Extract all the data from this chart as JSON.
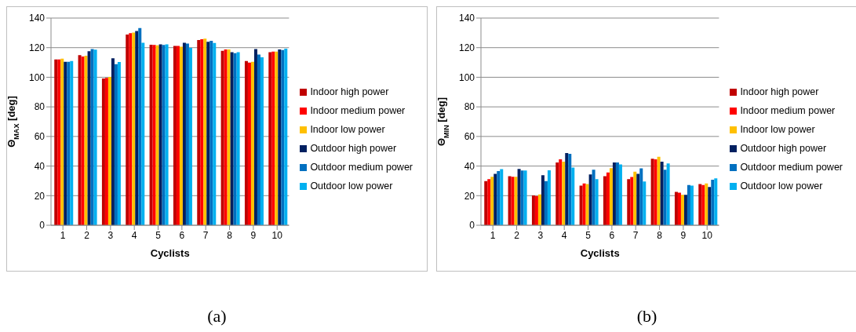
{
  "chart_data": [
    {
      "type": "bar",
      "ylabel": "Θ$_{MAX}$ [deg]",
      "xlabel": "Cyclists",
      "annotations": [
        "(a)"
      ],
      "categories": [
        "1",
        "2",
        "3",
        "4",
        "5",
        "6",
        "7",
        "8",
        "9",
        "10"
      ],
      "ylim": [
        0,
        140
      ],
      "yticks": [
        0,
        20,
        40,
        60,
        80,
        100,
        120,
        140
      ],
      "grid": "y",
      "legend": "right",
      "series": [
        {
          "name": "Indoor high power",
          "color": "#c00000",
          "values": [
            112,
            115,
            99.2,
            128.9,
            122,
            121.2,
            125.1,
            117.8,
            110.9,
            116.9
          ]
        },
        {
          "name": "Indoor medium power",
          "color": "#ff0000",
          "values": [
            112,
            114,
            99.6,
            129.8,
            121.8,
            121.2,
            125.7,
            118.8,
            109.9,
            117.3
          ]
        },
        {
          "name": "Indoor low power",
          "color": "#ffc000",
          "values": [
            112.5,
            114.5,
            100.2,
            130.2,
            121.6,
            120.6,
            126.1,
            118.8,
            110.5,
            117.3
          ]
        },
        {
          "name": "Outdoor high power",
          "color": "#002060",
          "values": [
            110.5,
            117.6,
            112.8,
            131.3,
            122.3,
            123.3,
            124,
            116.9,
            119.1,
            118.8
          ]
        },
        {
          "name": "Outdoor medium power",
          "color": "#0070c0",
          "values": [
            110.5,
            119.1,
            108.8,
            133.2,
            121.8,
            122.7,
            124.6,
            116.3,
            115.4,
            118.4
          ]
        },
        {
          "name": "Outdoor low power",
          "color": "#00b0f0",
          "values": [
            111,
            118.6,
            110.3,
            123.3,
            122.3,
            119.9,
            123.1,
            116.9,
            113.5,
            119.3
          ]
        }
      ]
    },
    {
      "type": "bar",
      "ylabel": "Θ$_{MIN}$ [deg]",
      "xlabel": "Cyclists",
      "annotations": [
        "(b)"
      ],
      "categories": [
        "1",
        "2",
        "3",
        "4",
        "5",
        "6",
        "7",
        "8",
        "9",
        "10"
      ],
      "ylim": [
        0,
        140
      ],
      "yticks": [
        0,
        20,
        40,
        60,
        80,
        100,
        120,
        140
      ],
      "grid": "y",
      "legend": "right",
      "series": [
        {
          "name": "Indoor high power",
          "color": "#c00000",
          "values": [
            29.8,
            33.2,
            20.1,
            42.4,
            26.8,
            33.2,
            31.1,
            45,
            22.5,
            27.8
          ]
        },
        {
          "name": "Indoor medium power",
          "color": "#ff0000",
          "values": [
            31.1,
            32.8,
            19.7,
            44.5,
            28.3,
            35.6,
            32.6,
            44.5,
            22,
            27.2
          ]
        },
        {
          "name": "Indoor low power",
          "color": "#ffc000",
          "values": [
            32.8,
            32.8,
            20.8,
            43,
            27.8,
            38.6,
            36.2,
            46.3,
            20.5,
            28.3
          ]
        },
        {
          "name": "Outdoor high power",
          "color": "#002060",
          "values": [
            34.7,
            38.1,
            33.8,
            48.8,
            34.3,
            42.4,
            34.7,
            43,
            20.5,
            25.9
          ]
        },
        {
          "name": "Outdoor medium power",
          "color": "#0070c0",
          "values": [
            36.6,
            37,
            29.8,
            48.2,
            37.5,
            42.4,
            38.5,
            37.5,
            27.2,
            30.8
          ]
        },
        {
          "name": "Outdoor low power",
          "color": "#00b0f0",
          "values": [
            37.9,
            37,
            37.1,
            39,
            31.1,
            41.1,
            29.5,
            41.8,
            26.8,
            31.7
          ]
        }
      ]
    }
  ]
}
